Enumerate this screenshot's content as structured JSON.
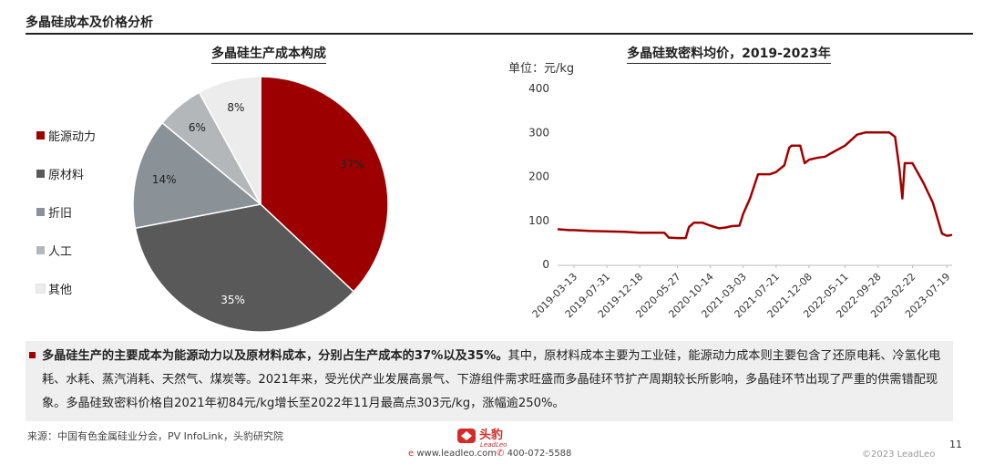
{
  "header": {
    "title": "多晶硅成本及价格分析"
  },
  "pie_title": "多晶硅生产成本构成",
  "line_title": "多晶硅致密料均价，2019-2023年",
  "unit_label": "单位：元/kg",
  "colors": {
    "accent": "#a00000",
    "dark": "#5a5a5a",
    "mid": "#8c949a",
    "light": "#b5b8ba",
    "lighter": "#ececec"
  },
  "chart_data": [
    {
      "type": "pie",
      "title": "多晶硅生产成本构成",
      "slices": [
        {
          "label": "能源动力",
          "value": 37,
          "display": "37%",
          "color": "#9c0000"
        },
        {
          "label": "原材料",
          "value": 35,
          "display": "35%",
          "color": "#595959"
        },
        {
          "label": "折旧",
          "value": 14,
          "display": "14%",
          "color": "#8a9197"
        },
        {
          "label": "人工",
          "value": 6,
          "display": "6%",
          "color": "#b4b7b9"
        },
        {
          "label": "其他",
          "value": 8,
          "display": "8%",
          "color": "#ececec"
        }
      ],
      "legend_position": "left"
    },
    {
      "type": "line",
      "title": "多晶硅致密料均价，2019-2023年",
      "ylabel": "单位：元/kg",
      "ylim": [
        0,
        400
      ],
      "yticks": [
        "0",
        "100",
        "200",
        "300",
        "400"
      ],
      "xticks": [
        "2019-03-13",
        "2019-07-31",
        "2019-12-18",
        "2020-05-27",
        "2020-10-14",
        "2021-03-03",
        "2021-07-21",
        "2021-12-08",
        "2022-05-11",
        "2022-09-28",
        "2023-02-22",
        "2023-07-19"
      ],
      "grid": false,
      "series": [
        {
          "color": "#a00000",
          "x": [
            "2019-01-02",
            "2019-02-20",
            "2019-03-13",
            "2019-05-15",
            "2019-07-31",
            "2019-10-15",
            "2019-12-18",
            "2020-02-20",
            "2020-04-01",
            "2020-04-20",
            "2020-05-27",
            "2020-07-01",
            "2020-07-15",
            "2020-08-05",
            "2020-09-10",
            "2020-10-14",
            "2020-11-20",
            "2020-12-20",
            "2021-01-13",
            "2021-02-15",
            "2021-03-03",
            "2021-04-01",
            "2021-05-05",
            "2021-05-20",
            "2021-06-25",
            "2021-07-21",
            "2021-08-25",
            "2021-09-15",
            "2021-09-25",
            "2021-11-01",
            "2021-11-20",
            "2021-12-08",
            "2022-01-10",
            "2022-02-15",
            "2022-03-20",
            "2022-05-11",
            "2022-07-01",
            "2022-08-05",
            "2022-09-28",
            "2022-11-15",
            "2022-12-10",
            "2022-12-28",
            "2023-01-10",
            "2023-01-20",
            "2023-02-22",
            "2023-04-10",
            "2023-05-20",
            "2023-06-28",
            "2023-07-19",
            "2023-08-10"
          ],
          "y": [
            80,
            78,
            78,
            76,
            75,
            74,
            72,
            72,
            72,
            61,
            60,
            60,
            85,
            95,
            95,
            88,
            82,
            84,
            87,
            88,
            115,
            150,
            205,
            205,
            205,
            210,
            225,
            265,
            270,
            270,
            230,
            238,
            242,
            245,
            255,
            270,
            295,
            300,
            300,
            300,
            290,
            220,
            150,
            230,
            230,
            185,
            140,
            70,
            65,
            67
          ]
        }
      ]
    }
  ],
  "summary": {
    "bold": "多晶硅生产的主要成本为能源动力以及原材料成本，分别占生产成本的37%以及35%。",
    "rest": "其中，原材料成本主要为工业硅，能源动力成本则主要包含了还原电耗、冷氢化电耗、水耗、蒸汽消耗、天然气、煤炭等。2021年来，受光伏产业发展高景气、下游组件需求旺盛而多晶硅环节扩产周期较长所影响，多晶硅环节出现了严重的供需错配现象。多晶硅致密料价格自2021年初84元/kg增长至2022年11月最高点303元/kg，涨幅逾250%。"
  },
  "footer": {
    "source": "来源：中国有色金属硅业分会，PV InfoLink，头豹研究院",
    "logo_text": "头豹",
    "logo_sub": "LeadLeo",
    "website": "www.leadleo.com",
    "phone": "400-072-5588",
    "copyright": "©2023 LeadLeo",
    "page": "11"
  }
}
